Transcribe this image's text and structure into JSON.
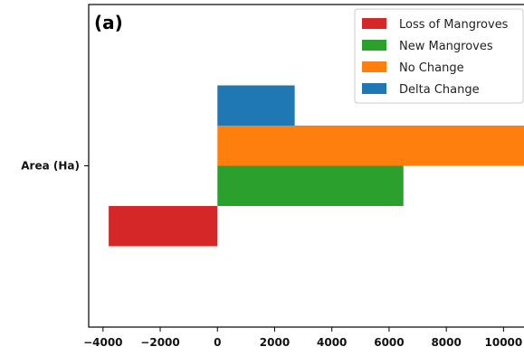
{
  "panel_label": "(a)",
  "chart_data": {
    "type": "bar",
    "orientation": "horizontal",
    "categories": [
      "Area (Ha)"
    ],
    "series": [
      {
        "name": "Loss of Mangroves",
        "values": [
          -3800
        ],
        "color": "#d62728"
      },
      {
        "name": "New Mangroves",
        "values": [
          6500
        ],
        "color": "#2ca02c"
      },
      {
        "name": "No Change",
        "values": [
          11000
        ],
        "color": "#ff7f0e"
      },
      {
        "name": "Delta Change",
        "values": [
          2700
        ],
        "color": "#1f77b4"
      }
    ],
    "xlim": [
      -4500,
      11000
    ],
    "xticks": [
      -4000,
      -2000,
      0,
      2000,
      4000,
      6000,
      8000,
      10000
    ],
    "xtick_labels": [
      "−4000",
      "−2000",
      "0",
      "2000",
      "4000",
      "6000",
      "8000",
      "10000"
    ],
    "ytick_labels": [
      "Area (Ha)"
    ],
    "legend_position": "top-right",
    "grid": false
  }
}
